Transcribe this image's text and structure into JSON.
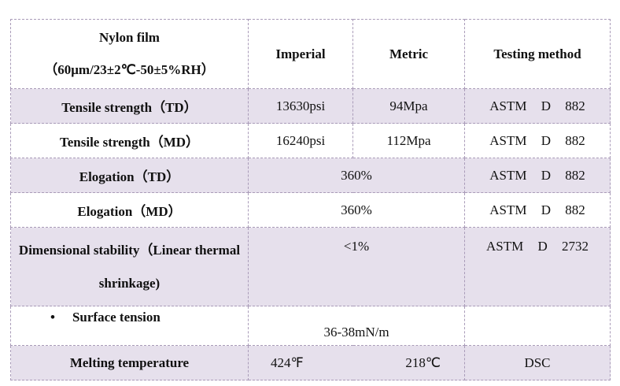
{
  "table": {
    "header": {
      "title": "Nylon film",
      "subtitle": "（60μm/23±2℃-50±5%RH）",
      "columns": [
        "Imperial",
        "Metric",
        "Testing method"
      ]
    },
    "rows": [
      [
        "Tensile strength（TD）",
        "13630psi",
        "94Mpa",
        "ASTM D 882"
      ],
      [
        "Tensile strength（MD）",
        "16240psi",
        "112Mpa",
        "ASTM D 882"
      ],
      [
        "Elogation（TD）",
        "360%",
        "ASTM D 882"
      ],
      [
        "Elogation（MD）",
        "360%",
        "ASTM D 882"
      ],
      [
        "Dimensional stability（Linear thermal shrinkage)",
        "<1%",
        "ASTM D 2732"
      ],
      [
        "Surface tension",
        "36-38mN/m"
      ],
      [
        "Melting temperature",
        "424℉",
        "218℃",
        "DSC"
      ]
    ]
  }
}
